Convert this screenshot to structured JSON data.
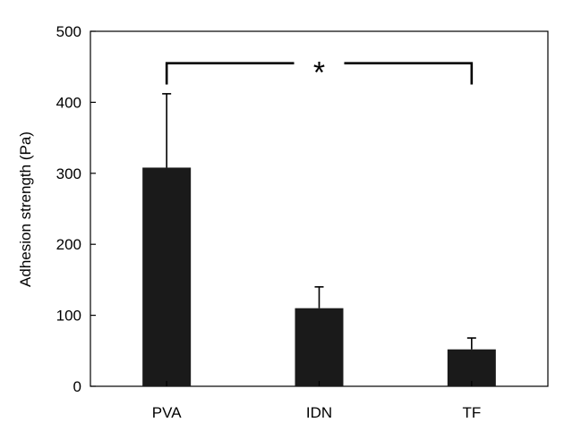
{
  "chart_data": {
    "type": "bar",
    "title": "",
    "xlabel": "",
    "ylabel": "Adhesion strength (Pa)",
    "categories": [
      "PVA",
      "IDN",
      "TF"
    ],
    "values": [
      308,
      110,
      52
    ],
    "error_upper": [
      412,
      140,
      68
    ],
    "ylim": [
      0,
      500
    ],
    "yticks": [
      0,
      100,
      200,
      300,
      400,
      500
    ],
    "grid": false,
    "legend": "none",
    "bar_color": "#1a1a1a",
    "significance": {
      "from": "PVA",
      "to": "TF",
      "label": "*",
      "bracket_y": 455,
      "drop_to": 425
    }
  }
}
